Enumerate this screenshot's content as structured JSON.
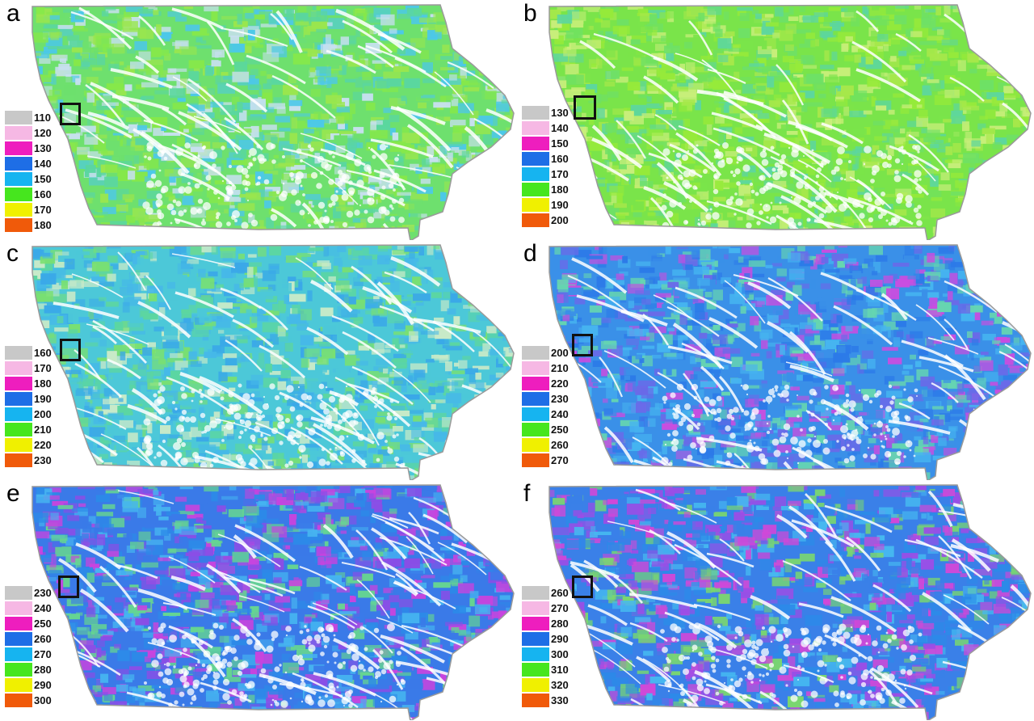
{
  "legend_colors": [
    "#c8c8c8",
    "#f6b8e4",
    "#ee1ebe",
    "#1e6ee6",
    "#16b4f0",
    "#46e61e",
    "#f0f000",
    "#f05a0a"
  ],
  "panels": [
    {
      "label": "a",
      "legend": [
        "110",
        "120",
        "130",
        "140",
        "150",
        "160",
        "170",
        "180"
      ],
      "palette": [
        "#6ee06e",
        "#86e84a",
        "#5ad6a0",
        "#4cc8e8",
        "#9ae64e",
        "#c8e0f0"
      ]
    },
    {
      "label": "b",
      "legend": [
        "130",
        "140",
        "150",
        "160",
        "170",
        "180",
        "190",
        "200"
      ],
      "palette": [
        "#7ae44a",
        "#96ea3a",
        "#6ee066",
        "#5cd6a0",
        "#a6e84a",
        "#c8ee7a"
      ]
    },
    {
      "label": "c",
      "legend": [
        "160",
        "170",
        "180",
        "190",
        "200",
        "210",
        "220",
        "230"
      ],
      "palette": [
        "#4cc8d8",
        "#5cd6a0",
        "#46b8e8",
        "#7ae070",
        "#3aa8e8",
        "#c8eac8"
      ]
    },
    {
      "label": "d",
      "legend": [
        "200",
        "210",
        "220",
        "230",
        "240",
        "250",
        "260",
        "270"
      ],
      "palette": [
        "#3a90e8",
        "#2c7ae8",
        "#46b4f0",
        "#6a6ae8",
        "#c84ee0",
        "#66d6b0"
      ]
    },
    {
      "label": "e",
      "legend": [
        "230",
        "240",
        "250",
        "260",
        "270",
        "280",
        "290",
        "300"
      ],
      "palette": [
        "#3a7ae8",
        "#2c8ae8",
        "#8a4ee6",
        "#c844de",
        "#46b4f0",
        "#66d690"
      ]
    },
    {
      "label": "f",
      "legend": [
        "260",
        "270",
        "280",
        "290",
        "300",
        "310",
        "320",
        "330"
      ],
      "palette": [
        "#3a80e8",
        "#9a4ee6",
        "#d048d8",
        "#2c8ae8",
        "#46b8f0",
        "#7ad670"
      ]
    }
  ]
}
